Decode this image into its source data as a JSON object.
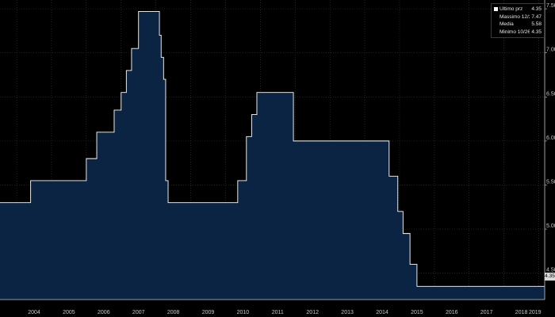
{
  "chart_data": {
    "type": "area",
    "step": true,
    "y_axis_position": "right",
    "grid": true,
    "ylim": [
      4.2,
      7.6
    ],
    "y_ticks": [
      "4.50",
      "5.00",
      "5.50",
      "6.00",
      "6.50",
      "7.00",
      "7.50"
    ],
    "x_ticks": [
      "2004",
      "2005",
      "2006",
      "2007",
      "2008",
      "2009",
      "2010",
      "2011",
      "2012",
      "2013",
      "2014",
      "2015",
      "2016",
      "2017",
      "2018",
      "2019"
    ],
    "xlim": [
      2003.52,
      2019.17
    ],
    "series": [
      {
        "x": [
          2003.52,
          2004.4,
          2006.0,
          2006.3,
          2006.8,
          2007.0,
          2007.15,
          2007.3,
          2007.5,
          2008.1,
          2008.15,
          2008.22,
          2008.28,
          2008.35,
          2010.35,
          2010.6,
          2010.75,
          2010.9,
          2011.2,
          2011.95,
          2013.85,
          2014.7,
          2014.95,
          2015.1,
          2015.3,
          2015.5,
          2019.17
        ],
        "y": [
          5.3,
          5.55,
          5.8,
          6.1,
          6.35,
          6.55,
          6.8,
          7.05,
          7.47,
          7.2,
          6.95,
          6.7,
          5.55,
          5.3,
          5.55,
          6.05,
          6.3,
          6.55,
          6.55,
          6.0,
          6.0,
          5.6,
          5.2,
          4.95,
          4.6,
          4.35,
          4.35
        ]
      }
    ]
  },
  "legend": {
    "entries": [
      {
        "label": "Ultimo prz",
        "value": "4.35",
        "swatch": "#ffffff"
      },
      {
        "label": "Massimo 12/24/07",
        "value": "7.47",
        "swatch": "none"
      },
      {
        "label": "Media",
        "value": "5.58",
        "swatch": "none"
      },
      {
        "label": "Minimo 10/26/15",
        "value": "4.35",
        "swatch": "none"
      }
    ]
  },
  "last_value_badge": "4.35",
  "colors": {
    "background": "#000000",
    "area_fill": "#0b2444",
    "line": "#ffffff",
    "grid": "#3c3c3c",
    "text": "#c8c8c8"
  }
}
